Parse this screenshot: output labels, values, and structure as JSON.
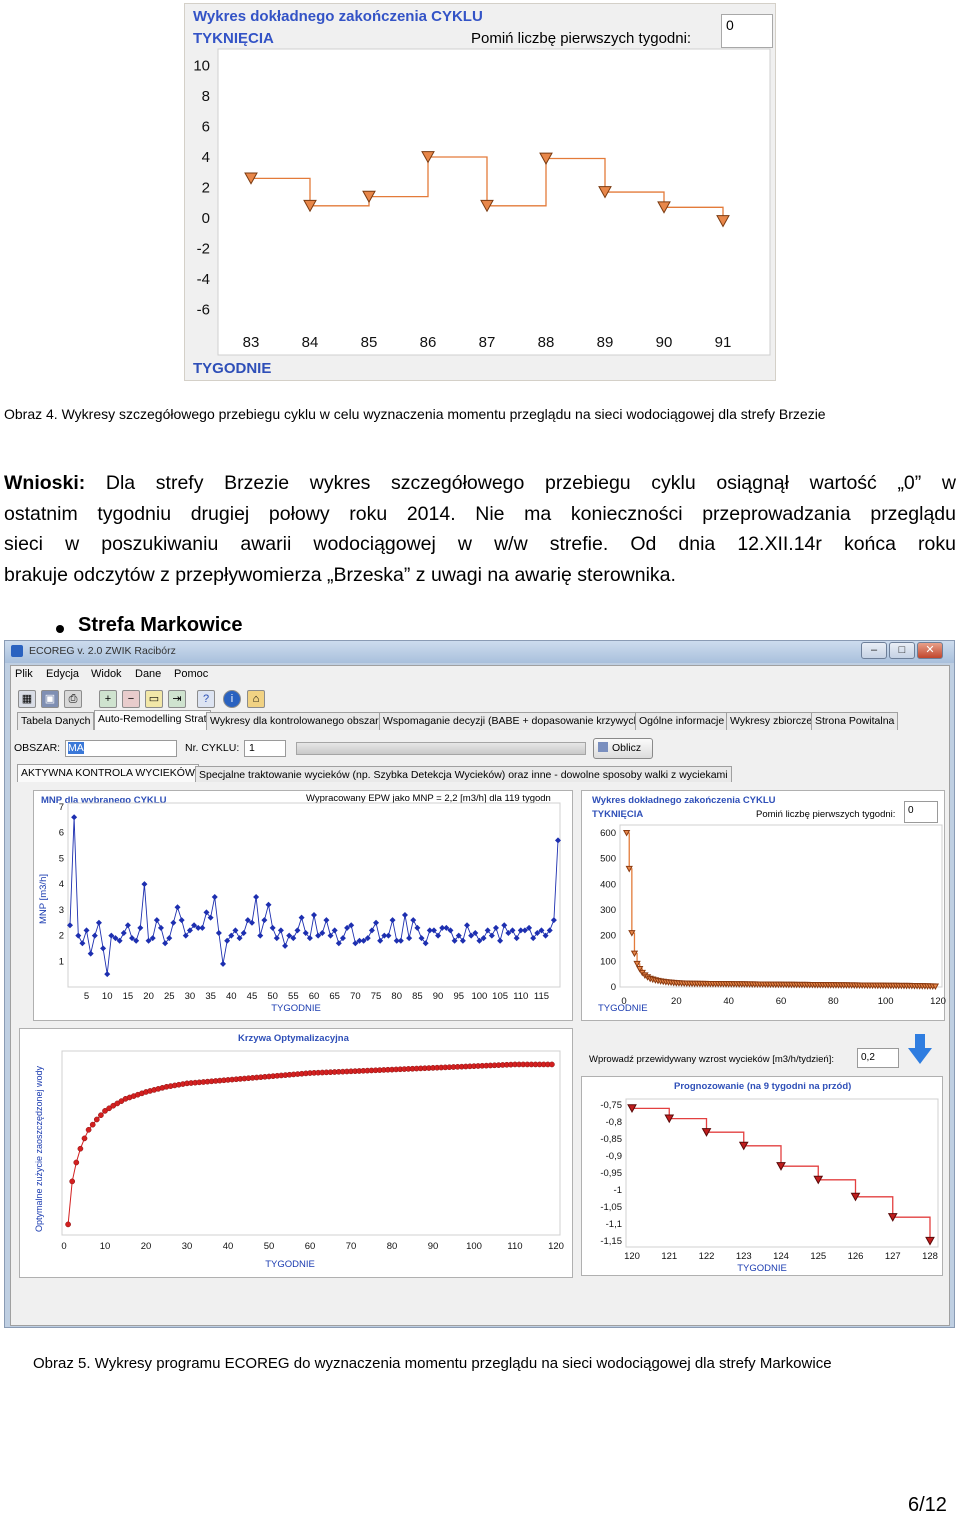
{
  "fig1": {
    "title_line1": "Wykres dokładnego zakończenia CYKLU",
    "title_line2": "TYKNIĘCIA",
    "skip_label": "Pomiń liczbę pierwszych tygodni:",
    "skip_value": "0",
    "xlabel": "TYGODNIE"
  },
  "caption1": "Obraz 4. Wykresy szczegółowego przebiegu cyklu w celu wyznaczenia momentu przeglądu na sieci wodociągowej dla strefy Brzezie",
  "para": {
    "lead": "Wnioski:",
    "line1": " Dla strefy Brzezie wykres szczegółowego przebiegu cyklu osiągnął wartość „0” w",
    "line2": "ostatnim tygodniu drugiej połowy roku 2014. Nie ma konieczności przeprowadzania przeglądu",
    "line3": "sieci w poszukiwaniu awarii wodociągowej w w/w strefie. Od dnia 12.XII.14r końca roku",
    "line4": "brakuje odczytów z przepływomierza „Brzeska” z uwagi na awarię sterownika."
  },
  "bullet": "Strefa Markowice",
  "app": {
    "title": "ECOREG v. 2.0 ZWIK Racibórz",
    "menu": [
      "Plik",
      "Edycja",
      "Widok",
      "Dane",
      "Pomoc"
    ],
    "tabs": [
      "Tabela Danych",
      "Auto-Remodelling Strat",
      "Wykresy dla kontrolowanego obszaru",
      "Wspomaganie decyzji (BABE + dopasowanie krzywych)",
      "Ogólne informacje",
      "Wykresy zbiorcze",
      "Strona Powitalna"
    ],
    "obszar_label": "OBSZAR:",
    "obszar_value": "MA",
    "cykl_label": "Nr. CYKLU:",
    "cykl_value": "1",
    "oblicz": "Oblicz",
    "subtab_active": "AKTYWNA KONTROLA WYCIEKÓW",
    "subtab_other": "Specjalne traktowanie wycieków (np. Szybka Detekcja Wycieków) oraz inne - dowolne sposoby walki z wyciekami",
    "mnp_title": "MNP dla wybranego CYKLU",
    "mnp_info": "Wypracowany EPW jako MNP = 2,2 [m3/h] dla 119 tygodn",
    "mnp_ylabel": "MNP [m3/h]",
    "xlabel": "TYGODNIE",
    "cykl_title1": "Wykres dokładnego zakończenia CYKLU",
    "cykl_title2": "TYKNIĘCIA",
    "cykl_skip_label": "Pomiń liczbę pierwszych tygodni:",
    "cykl_skip_value": "0",
    "opt_title": "Krzywa Optymalizacyjna",
    "opt_ylabel": "Optymalne zużycie zaoszczędzonej wody",
    "growth_label": "Wprowadź przewidywany wzrost wycieków [m3/h/tydzień]:",
    "growth_value": "0,2",
    "prog_title": "Prognozowanie (na 9 tygodni na przód)"
  },
  "caption2": "Obraz 5. Wykresy programu ECOREG do wyznaczenia momentu przeglądu na sieci wodociągowej dla strefy Markowice",
  "page_number": "6/12",
  "chart_data": [
    {
      "type": "line",
      "title": "Wykres dokładnego zakończenia CYKLU TYKNIĘCIA",
      "xlabel": "TYGODNIE",
      "x": [
        83,
        84,
        85,
        86,
        87,
        88,
        89,
        90,
        91
      ],
      "values": [
        2.6,
        0.8,
        1.4,
        4.0,
        0.8,
        3.9,
        1.7,
        0.7,
        -0.2
      ],
      "ylim": [
        -7,
        10
      ],
      "yticks": [
        10,
        8,
        6,
        4,
        2,
        0,
        -2,
        -4,
        -6
      ],
      "step": true,
      "grid": false,
      "color": "#e37b3a"
    },
    {
      "type": "scatter",
      "title": "MNP dla wybranego CYKLU",
      "xlabel": "TYGODNIE",
      "ylabel": "MNP [m3/h]",
      "xticks": [
        5,
        10,
        15,
        20,
        25,
        30,
        35,
        40,
        45,
        50,
        55,
        60,
        65,
        70,
        75,
        80,
        85,
        90,
        95,
        100,
        105,
        110,
        115
      ],
      "yticks": [
        1,
        2,
        3,
        4,
        5,
        6,
        7
      ],
      "ylim": [
        0,
        7
      ],
      "x": [
        1,
        2,
        3,
        4,
        5,
        6,
        7,
        8,
        9,
        10,
        11,
        12,
        13,
        14,
        15,
        16,
        17,
        18,
        19,
        20,
        21,
        22,
        23,
        24,
        25,
        26,
        27,
        28,
        29,
        30,
        31,
        32,
        33,
        34,
        35,
        36,
        37,
        38,
        39,
        40,
        41,
        42,
        43,
        44,
        45,
        46,
        47,
        48,
        49,
        50,
        51,
        52,
        53,
        54,
        55,
        56,
        57,
        58,
        59,
        60,
        61,
        62,
        63,
        64,
        65,
        66,
        67,
        68,
        69,
        70,
        71,
        72,
        73,
        74,
        75,
        76,
        77,
        78,
        79,
        80,
        81,
        82,
        83,
        84,
        85,
        86,
        87,
        88,
        89,
        90,
        91,
        92,
        93,
        94,
        95,
        96,
        97,
        98,
        99,
        100,
        101,
        102,
        103,
        104,
        105,
        106,
        107,
        108,
        109,
        110,
        111,
        112,
        113,
        114,
        115,
        116,
        117,
        118,
        119
      ],
      "values": [
        2.4,
        6.6,
        2.0,
        1.7,
        2.2,
        1.3,
        2.0,
        2.5,
        1.5,
        0.5,
        2.0,
        1.9,
        1.8,
        2.1,
        2.4,
        1.9,
        1.8,
        2.3,
        4.0,
        1.8,
        1.9,
        2.6,
        2.3,
        1.7,
        1.9,
        2.5,
        3.1,
        2.6,
        2.0,
        2.2,
        2.4,
        2.3,
        2.3,
        2.9,
        2.7,
        3.5,
        2.1,
        0.9,
        1.8,
        2.0,
        2.2,
        1.9,
        2.1,
        2.6,
        2.5,
        3.5,
        2.0,
        2.6,
        3.2,
        2.3,
        1.9,
        2.2,
        1.6,
        2.0,
        1.9,
        2.2,
        2.7,
        2.1,
        1.9,
        2.8,
        2.0,
        2.1,
        2.6,
        2.0,
        2.2,
        1.7,
        1.9,
        2.3,
        2.4,
        1.7,
        1.8,
        1.8,
        1.9,
        2.2,
        2.5,
        1.8,
        2.0,
        2.0,
        2.6,
        1.8,
        1.8,
        2.8,
        1.9,
        2.6,
        2.3,
        1.9,
        1.7,
        2.2,
        2.2,
        2.0,
        2.3,
        2.3,
        2.2,
        1.8,
        2.0,
        1.8,
        2.4,
        2.0,
        2.1,
        1.8,
        1.9,
        2.2,
        2.0,
        2.3,
        1.8,
        2.4,
        2.1,
        2.2,
        1.9,
        2.2,
        2.2,
        2.3,
        1.9,
        2.1,
        2.2,
        2.0,
        2.2,
        2.6,
        5.7
      ],
      "color": "#1d2fb0"
    },
    {
      "type": "line",
      "title": "Wykres dokładnego zakończenia CYKLU TYKNIĘCIA",
      "xlabel": "TYGODNIE",
      "xticks": [
        0,
        20,
        40,
        60,
        80,
        100,
        120
      ],
      "yticks": [
        0,
        100,
        200,
        300,
        400,
        500,
        600
      ],
      "ylim": [
        0,
        620
      ],
      "x": [
        1,
        2,
        3,
        4,
        5,
        6,
        7,
        8,
        9,
        10,
        12,
        14,
        16,
        18,
        20,
        25,
        30,
        40,
        50,
        60,
        70,
        80,
        90,
        100,
        110,
        119
      ],
      "values": [
        600,
        460,
        210,
        130,
        90,
        70,
        55,
        45,
        38,
        32,
        26,
        22,
        19,
        17,
        15,
        13,
        12,
        11,
        10,
        9,
        8,
        7,
        6,
        5,
        4,
        2
      ],
      "step": true,
      "color": "#e37b3a"
    },
    {
      "type": "scatter",
      "title": "Krzywa Optymalizacyjna",
      "xlabel": "TYGODNIE",
      "ylabel": "Optymalne zużycie zaoszczędzonej wody",
      "xticks": [
        0,
        10,
        20,
        30,
        40,
        50,
        60,
        70,
        80,
        90,
        100,
        110,
        120
      ],
      "x": [
        1,
        2,
        3,
        4,
        5,
        6,
        8,
        10,
        12,
        15,
        20,
        25,
        30,
        40,
        50,
        60,
        70,
        80,
        90,
        100,
        110,
        119
      ],
      "values": [
        0.05,
        0.3,
        0.41,
        0.49,
        0.55,
        0.6,
        0.66,
        0.71,
        0.74,
        0.78,
        0.82,
        0.85,
        0.87,
        0.89,
        0.91,
        0.93,
        0.94,
        0.95,
        0.96,
        0.97,
        0.98,
        0.98
      ],
      "color": "#d32020"
    },
    {
      "type": "line",
      "title": "Prognozowanie (na 9 tygodni na przód)",
      "xlabel": "TYGODNIE",
      "xticks": [
        120,
        121,
        122,
        123,
        124,
        125,
        126,
        127,
        128
      ],
      "yticks": [
        "-0,75",
        "-0,8",
        "-0,85",
        "-0,9",
        "-0,95",
        "-1",
        "-1,05",
        "-1,1",
        "-1,15"
      ],
      "x": [
        120,
        121,
        122,
        123,
        124,
        125,
        126,
        127,
        128
      ],
      "values": [
        -0.76,
        -0.79,
        -0.83,
        -0.87,
        -0.93,
        -0.97,
        -1.02,
        -1.08,
        -1.15
      ],
      "step": true,
      "color": "#e34040"
    }
  ]
}
